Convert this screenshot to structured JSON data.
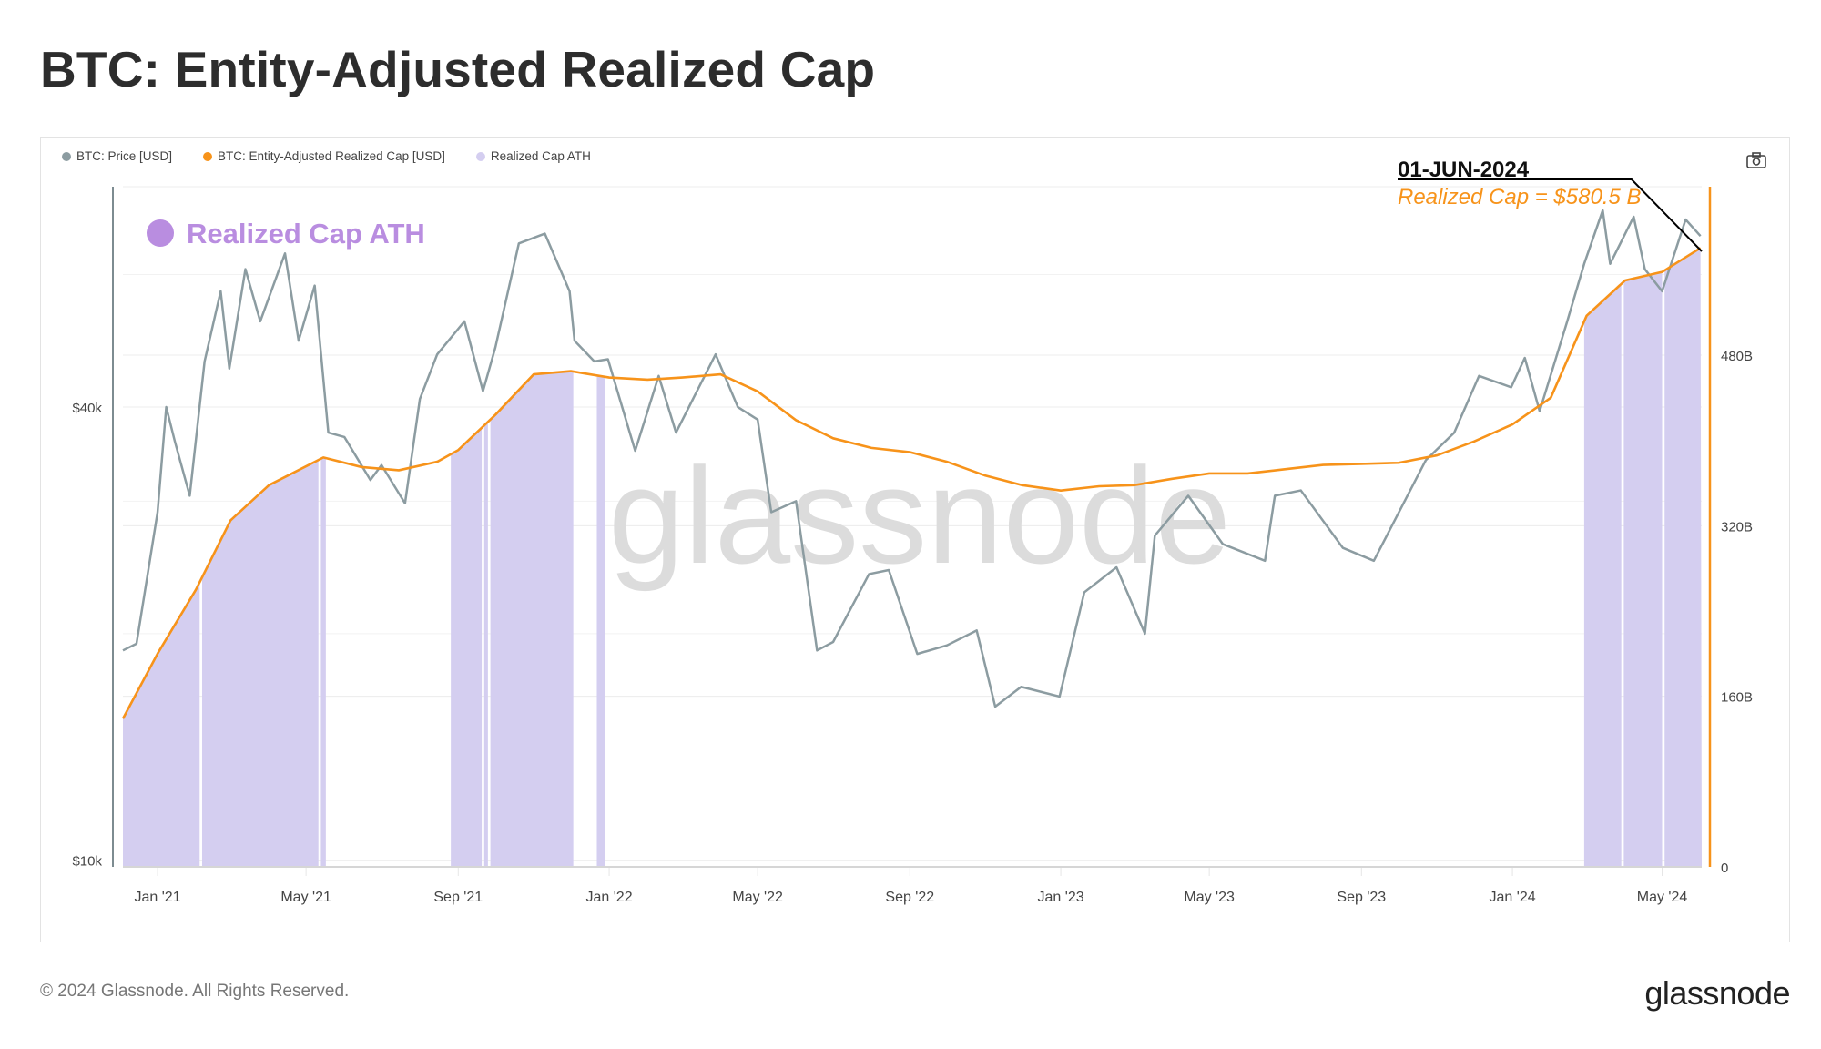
{
  "header": {
    "title": "BTC: Entity-Adjusted Realized Cap"
  },
  "footer": {
    "copyright": "© 2024 Glassnode. All Rights Reserved.",
    "logo": "glassnode"
  },
  "toolbar": {
    "screenshot_icon": "camera-icon"
  },
  "chart_data": {
    "type": "line",
    "title": "BTC: Entity-Adjusted Realized Cap",
    "legend": [
      {
        "name": "BTC: Price [USD]",
        "color": "#8c9ca1"
      },
      {
        "name": "BTC: Entity-Adjusted Realized Cap [USD]",
        "color": "#f7931a"
      },
      {
        "name": "Realized Cap ATH",
        "color": "#d4cef0"
      }
    ],
    "legend_placement": "top-left",
    "inset_label": {
      "text": "Realized Cap ATH",
      "color": "#b98de0"
    },
    "annotation": {
      "date": "01-JUN-2024",
      "text": "Realized Cap = $580.5 B"
    },
    "watermark": "glassnode",
    "x_range": [
      "2020-12-04",
      "2024-06-02"
    ],
    "x_ticks": [
      {
        "date": "2021-01-01",
        "label": "Jan '21"
      },
      {
        "date": "2021-05-01",
        "label": "May '21"
      },
      {
        "date": "2021-09-01",
        "label": "Sep '21"
      },
      {
        "date": "2022-01-01",
        "label": "Jan '22"
      },
      {
        "date": "2022-05-01",
        "label": "May '22"
      },
      {
        "date": "2022-09-01",
        "label": "Sep '22"
      },
      {
        "date": "2023-01-01",
        "label": "Jan '23"
      },
      {
        "date": "2023-05-01",
        "label": "May '23"
      },
      {
        "date": "2023-09-01",
        "label": "Sep '23"
      },
      {
        "date": "2024-01-01",
        "label": "Jan '24"
      },
      {
        "date": "2024-05-01",
        "label": "May '24"
      }
    ],
    "y_left": {
      "scale": "log",
      "range": [
        9800,
        78500
      ],
      "ticks": [
        {
          "value": 10000,
          "label": "$10k"
        },
        {
          "value": 40000,
          "label": "$40k"
        }
      ]
    },
    "y_right": {
      "scale": "linear",
      "range_billions": [
        0,
        638
      ],
      "ticks": [
        {
          "value": 0,
          "label": "0"
        },
        {
          "value": 160,
          "label": "160B"
        },
        {
          "value": 320,
          "label": "320B"
        },
        {
          "value": 480,
          "label": "480B"
        }
      ]
    },
    "grid": true,
    "series": [
      {
        "name": "BTC: Price [USD]",
        "axis": "left",
        "points": [
          [
            "2020-12-04",
            19000
          ],
          [
            "2020-12-15",
            19400
          ],
          [
            "2021-01-01",
            29000
          ],
          [
            "2021-01-08",
            40000
          ],
          [
            "2021-01-15",
            36000
          ],
          [
            "2021-01-27",
            30500
          ],
          [
            "2021-02-08",
            46000
          ],
          [
            "2021-02-21",
            57000
          ],
          [
            "2021-02-28",
            45000
          ],
          [
            "2021-03-13",
            61000
          ],
          [
            "2021-03-25",
            52000
          ],
          [
            "2021-04-14",
            64000
          ],
          [
            "2021-04-25",
            49000
          ],
          [
            "2021-05-08",
            58000
          ],
          [
            "2021-05-19",
            37000
          ],
          [
            "2021-06-01",
            36500
          ],
          [
            "2021-06-22",
            32000
          ],
          [
            "2021-07-01",
            33500
          ],
          [
            "2021-07-20",
            29800
          ],
          [
            "2021-08-01",
            41000
          ],
          [
            "2021-08-15",
            47000
          ],
          [
            "2021-09-06",
            52000
          ],
          [
            "2021-09-21",
            42000
          ],
          [
            "2021-10-01",
            48000
          ],
          [
            "2021-10-20",
            66000
          ],
          [
            "2021-11-10",
            68000
          ],
          [
            "2021-11-30",
            57000
          ],
          [
            "2021-12-04",
            49000
          ],
          [
            "2021-12-20",
            46000
          ],
          [
            "2021-12-31",
            46300
          ],
          [
            "2022-01-22",
            35000
          ],
          [
            "2022-02-10",
            44000
          ],
          [
            "2022-02-24",
            37000
          ],
          [
            "2022-03-28",
            47000
          ],
          [
            "2022-04-15",
            40000
          ],
          [
            "2022-05-01",
            38500
          ],
          [
            "2022-05-12",
            29000
          ],
          [
            "2022-06-01",
            30000
          ],
          [
            "2022-06-18",
            19000
          ],
          [
            "2022-07-01",
            19500
          ],
          [
            "2022-07-30",
            24000
          ],
          [
            "2022-08-15",
            24300
          ],
          [
            "2022-09-07",
            18800
          ],
          [
            "2022-10-01",
            19300
          ],
          [
            "2022-10-25",
            20200
          ],
          [
            "2022-11-09",
            16000
          ],
          [
            "2022-11-30",
            17000
          ],
          [
            "2022-12-31",
            16500
          ],
          [
            "2023-01-20",
            22700
          ],
          [
            "2023-02-15",
            24500
          ],
          [
            "2023-03-10",
            20000
          ],
          [
            "2023-03-18",
            27000
          ],
          [
            "2023-04-14",
            30500
          ],
          [
            "2023-05-12",
            26300
          ],
          [
            "2023-06-15",
            25000
          ],
          [
            "2023-06-23",
            30500
          ],
          [
            "2023-07-14",
            31000
          ],
          [
            "2023-08-17",
            26000
          ],
          [
            "2023-09-11",
            25000
          ],
          [
            "2023-10-23",
            34000
          ],
          [
            "2023-11-15",
            37000
          ],
          [
            "2023-12-05",
            44000
          ],
          [
            "2023-12-31",
            42500
          ],
          [
            "2024-01-11",
            46500
          ],
          [
            "2024-01-23",
            39500
          ],
          [
            "2024-02-14",
            51800
          ],
          [
            "2024-02-28",
            62000
          ],
          [
            "2024-03-14",
            73000
          ],
          [
            "2024-03-20",
            62000
          ],
          [
            "2024-04-08",
            71600
          ],
          [
            "2024-04-17",
            61000
          ],
          [
            "2024-05-01",
            57000
          ],
          [
            "2024-05-20",
            71000
          ],
          [
            "2024-06-01",
            67500
          ]
        ]
      },
      {
        "name": "BTC: Entity-Adjusted Realized Cap [USD]",
        "axis": "right",
        "unit": "billion USD",
        "points": [
          [
            "2020-12-04",
            139
          ],
          [
            "2021-01-01",
            200
          ],
          [
            "2021-02-01",
            260
          ],
          [
            "2021-03-01",
            325
          ],
          [
            "2021-04-01",
            358
          ],
          [
            "2021-05-15",
            384
          ],
          [
            "2021-06-15",
            375
          ],
          [
            "2021-07-15",
            372
          ],
          [
            "2021-08-15",
            380
          ],
          [
            "2021-09-01",
            391
          ],
          [
            "2021-10-01",
            424
          ],
          [
            "2021-11-01",
            462
          ],
          [
            "2021-12-01",
            465
          ],
          [
            "2022-01-01",
            459
          ],
          [
            "2022-02-01",
            457
          ],
          [
            "2022-03-01",
            459
          ],
          [
            "2022-04-01",
            462
          ],
          [
            "2022-05-01",
            446
          ],
          [
            "2022-06-01",
            419
          ],
          [
            "2022-07-01",
            402
          ],
          [
            "2022-08-01",
            393
          ],
          [
            "2022-09-01",
            389
          ],
          [
            "2022-10-01",
            380
          ],
          [
            "2022-11-01",
            367
          ],
          [
            "2022-12-01",
            358
          ],
          [
            "2023-01-01",
            353
          ],
          [
            "2023-02-01",
            357
          ],
          [
            "2023-03-01",
            358
          ],
          [
            "2023-04-01",
            364
          ],
          [
            "2023-05-01",
            369
          ],
          [
            "2023-06-01",
            369
          ],
          [
            "2023-07-01",
            373
          ],
          [
            "2023-08-01",
            377
          ],
          [
            "2023-09-01",
            378
          ],
          [
            "2023-10-01",
            379
          ],
          [
            "2023-11-01",
            386
          ],
          [
            "2023-12-01",
            399
          ],
          [
            "2024-01-01",
            415
          ],
          [
            "2024-02-01",
            440
          ],
          [
            "2024-03-01",
            517
          ],
          [
            "2024-04-01",
            550
          ],
          [
            "2024-05-01",
            558
          ],
          [
            "2024-06-01",
            580.5
          ]
        ]
      }
    ],
    "ath_ranges": [
      [
        "2020-12-04",
        "2021-02-04"
      ],
      [
        "2021-02-06",
        "2021-05-11"
      ],
      [
        "2021-05-13",
        "2021-05-17"
      ],
      [
        "2021-08-26",
        "2021-09-20"
      ],
      [
        "2021-09-22",
        "2021-09-25"
      ],
      [
        "2021-09-27",
        "2021-12-03"
      ],
      [
        "2021-12-22",
        "2021-12-29"
      ],
      [
        "2024-02-28",
        "2024-03-29"
      ],
      [
        "2024-03-31",
        "2024-05-01"
      ],
      [
        "2024-05-03",
        "2024-06-02"
      ]
    ]
  }
}
